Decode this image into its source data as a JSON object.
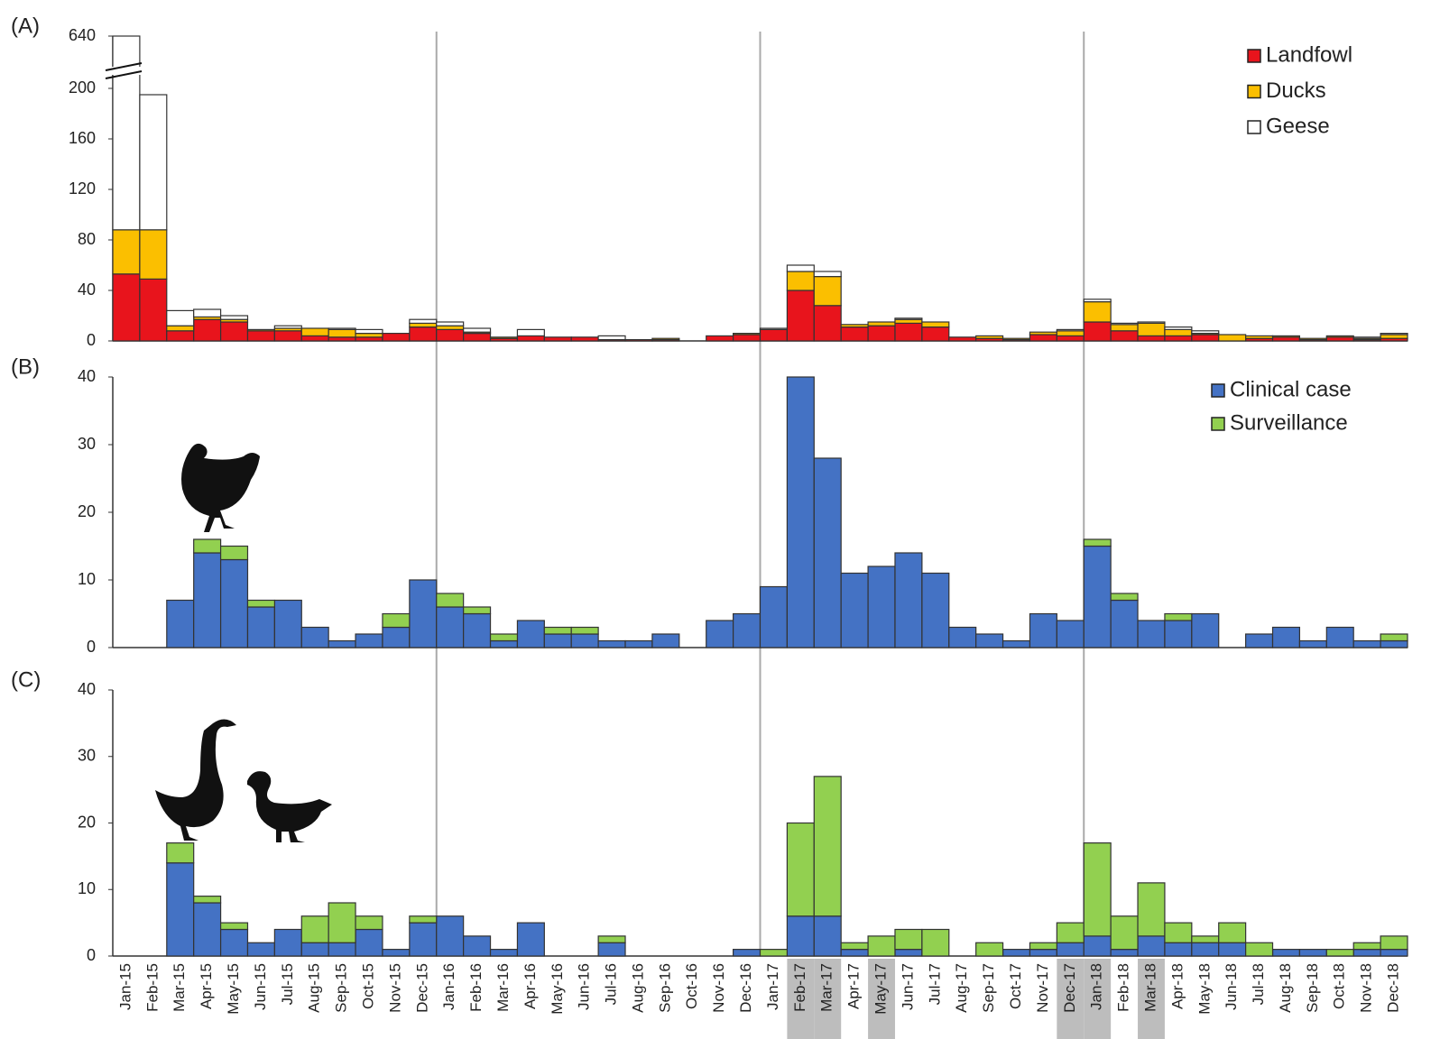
{
  "chart_data": [
    {
      "type": "bar",
      "stacked": true,
      "label": "(A)",
      "axis_break": true,
      "legend_position": "top-right",
      "ylim": [
        0,
        640
      ],
      "yticks": [
        0,
        40,
        80,
        120,
        160,
        200,
        640
      ],
      "series": [
        {
          "name": "Landfowl",
          "color": "#e8141c",
          "values": [
            53,
            49,
            8,
            17,
            15,
            8,
            8,
            4,
            3,
            3,
            6,
            11,
            9,
            6,
            2,
            4,
            3,
            3,
            1,
            1,
            1,
            0,
            4,
            5,
            9,
            40,
            28,
            11,
            12,
            14,
            11,
            3,
            2,
            1,
            5,
            4,
            15,
            8,
            4,
            4,
            5,
            0,
            2,
            3,
            1,
            3,
            1,
            2
          ]
        },
        {
          "name": "Ducks",
          "color": "#fbbf00",
          "values": [
            35,
            39,
            4,
            2,
            2,
            1,
            2,
            6,
            6,
            3,
            0,
            3,
            3,
            1,
            1,
            0,
            0,
            0,
            0,
            0,
            1,
            0,
            0,
            1,
            0,
            15,
            23,
            2,
            3,
            3,
            4,
            0,
            2,
            1,
            2,
            4,
            16,
            5,
            10,
            5,
            1,
            5,
            2,
            1,
            1,
            1,
            1,
            3
          ]
        },
        {
          "name": "Geese",
          "color": "#ffffff",
          "values": [
            552,
            107,
            12,
            6,
            3,
            0,
            2,
            0,
            1,
            3,
            0,
            3,
            3,
            3,
            0,
            5,
            0,
            0,
            3,
            0,
            0,
            0,
            0,
            0,
            1,
            5,
            4,
            0,
            0,
            1,
            0,
            0,
            0,
            0,
            0,
            1,
            2,
            1,
            1,
            2,
            2,
            0,
            0,
            0,
            0,
            0,
            1,
            1
          ]
        }
      ]
    },
    {
      "type": "bar",
      "stacked": true,
      "label": "(B)",
      "legend_position": "top-right",
      "ylim": [
        0,
        40
      ],
      "yticks": [
        0,
        10,
        20,
        30,
        40
      ],
      "series": [
        {
          "name": "Clinical case",
          "color": "#4472c4",
          "values": [
            0,
            0,
            7,
            14,
            13,
            6,
            7,
            3,
            1,
            2,
            3,
            10,
            6,
            5,
            1,
            4,
            2,
            2,
            1,
            1,
            2,
            0,
            4,
            5,
            9,
            40,
            28,
            11,
            12,
            14,
            11,
            3,
            2,
            1,
            5,
            4,
            15,
            7,
            4,
            4,
            5,
            0,
            2,
            3,
            1,
            3,
            1,
            1
          ]
        },
        {
          "name": "Surveillance",
          "color": "#92d050",
          "values": [
            0,
            0,
            0,
            2,
            2,
            1,
            0,
            0,
            0,
            0,
            2,
            0,
            2,
            1,
            1,
            0,
            1,
            1,
            0,
            0,
            0,
            0,
            0,
            0,
            0,
            0,
            0,
            0,
            0,
            0,
            0,
            0,
            0,
            0,
            0,
            0,
            1,
            1,
            0,
            1,
            0,
            0,
            0,
            0,
            0,
            0,
            0,
            1
          ]
        }
      ]
    },
    {
      "type": "bar",
      "stacked": true,
      "label": "(C)",
      "ylim": [
        0,
        40
      ],
      "yticks": [
        0,
        10,
        20,
        30,
        40
      ],
      "categories": [
        "Jan-15",
        "Feb-15",
        "Mar-15",
        "Apr-15",
        "May-15",
        "Jun-15",
        "Jul-15",
        "Aug-15",
        "Sep-15",
        "Oct-15",
        "Nov-15",
        "Dec-15",
        "Jan-16",
        "Feb-16",
        "Mar-16",
        "Apr-16",
        "May-16",
        "Jun-16",
        "Jul-16",
        "Aug-16",
        "Sep-16",
        "Oct-16",
        "Nov-16",
        "Dec-16",
        "Jan-17",
        "Feb-17",
        "Mar-17",
        "Apr-17",
        "May-17",
        "Jun-17",
        "Jul-17",
        "Aug-17",
        "Sep-17",
        "Oct-17",
        "Nov-17",
        "Dec-17",
        "Jan-18",
        "Feb-18",
        "Mar-18",
        "Apr-18",
        "May-18",
        "Jun-18",
        "Jul-18",
        "Aug-18",
        "Sep-18",
        "Oct-18",
        "Nov-18",
        "Dec-18"
      ],
      "highlighted": [
        false,
        false,
        false,
        false,
        false,
        false,
        false,
        false,
        false,
        false,
        false,
        false,
        false,
        false,
        false,
        false,
        false,
        false,
        false,
        false,
        false,
        false,
        false,
        false,
        false,
        true,
        true,
        false,
        true,
        false,
        false,
        false,
        false,
        false,
        false,
        true,
        true,
        false,
        true,
        false,
        false,
        false,
        false,
        false,
        false,
        false,
        false,
        false
      ],
      "series": [
        {
          "color": "#4472c4",
          "values": [
            0,
            0,
            14,
            8,
            4,
            2,
            4,
            2,
            2,
            4,
            1,
            5,
            6,
            3,
            1,
            5,
            0,
            0,
            2,
            0,
            0,
            0,
            0,
            1,
            0,
            6,
            6,
            1,
            0,
            1,
            0,
            0,
            0,
            1,
            1,
            2,
            3,
            1,
            3,
            2,
            2,
            2,
            0,
            1,
            1,
            0,
            1,
            1
          ]
        },
        {
          "color": "#92d050",
          "values": [
            0,
            0,
            3,
            1,
            1,
            0,
            0,
            4,
            6,
            2,
            0,
            1,
            0,
            0,
            0,
            0,
            0,
            0,
            1,
            0,
            0,
            0,
            0,
            0,
            1,
            14,
            21,
            1,
            3,
            3,
            4,
            0,
            2,
            0,
            1,
            3,
            14,
            5,
            8,
            3,
            1,
            3,
            2,
            0,
            0,
            1,
            1,
            2
          ]
        }
      ]
    }
  ]
}
